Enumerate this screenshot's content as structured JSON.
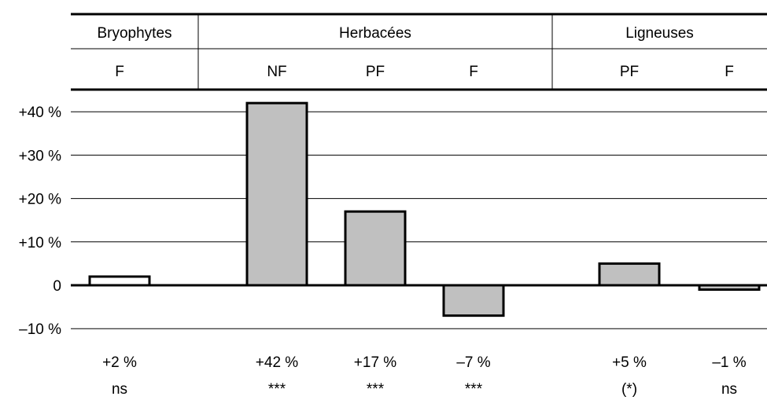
{
  "chart_data": {
    "type": "bar",
    "header": {
      "groups": [
        {
          "label": "Bryophytes",
          "columns": [
            "F"
          ]
        },
        {
          "label": "Herbacées",
          "columns": [
            "NF",
            "PF",
            "F"
          ]
        },
        {
          "label": "Ligneuses",
          "columns": [
            "PF",
            "F"
          ]
        }
      ]
    },
    "categories": [
      "F",
      "NF",
      "PF",
      "F",
      "PF",
      "F"
    ],
    "values": [
      2,
      42,
      17,
      -7,
      5,
      -1
    ],
    "bar_fill": [
      "#ffffff",
      "#c0c0c0",
      "#c0c0c0",
      "#c0c0c0",
      "#c0c0c0",
      "#c0c0c0"
    ],
    "value_labels": [
      "+2 %",
      "+42 %",
      "+17 %",
      "–7 %",
      "+5 %",
      "–1 %"
    ],
    "significance": [
      "ns",
      "***",
      "***",
      "***",
      "(*)",
      "ns"
    ],
    "yticks": [
      {
        "value": 40,
        "label": "+40 %"
      },
      {
        "value": 30,
        "label": "+30 %"
      },
      {
        "value": 20,
        "label": "+20 %"
      },
      {
        "value": 10,
        "label": "+10 %"
      },
      {
        "value": 0,
        "label": "0"
      },
      {
        "value": -10,
        "label": "–10 %"
      }
    ],
    "ylim": [
      -10,
      40
    ],
    "grid": true,
    "colors": {
      "bar": "#c0c0c0",
      "outline": "#000000",
      "grid": "#000000"
    }
  }
}
